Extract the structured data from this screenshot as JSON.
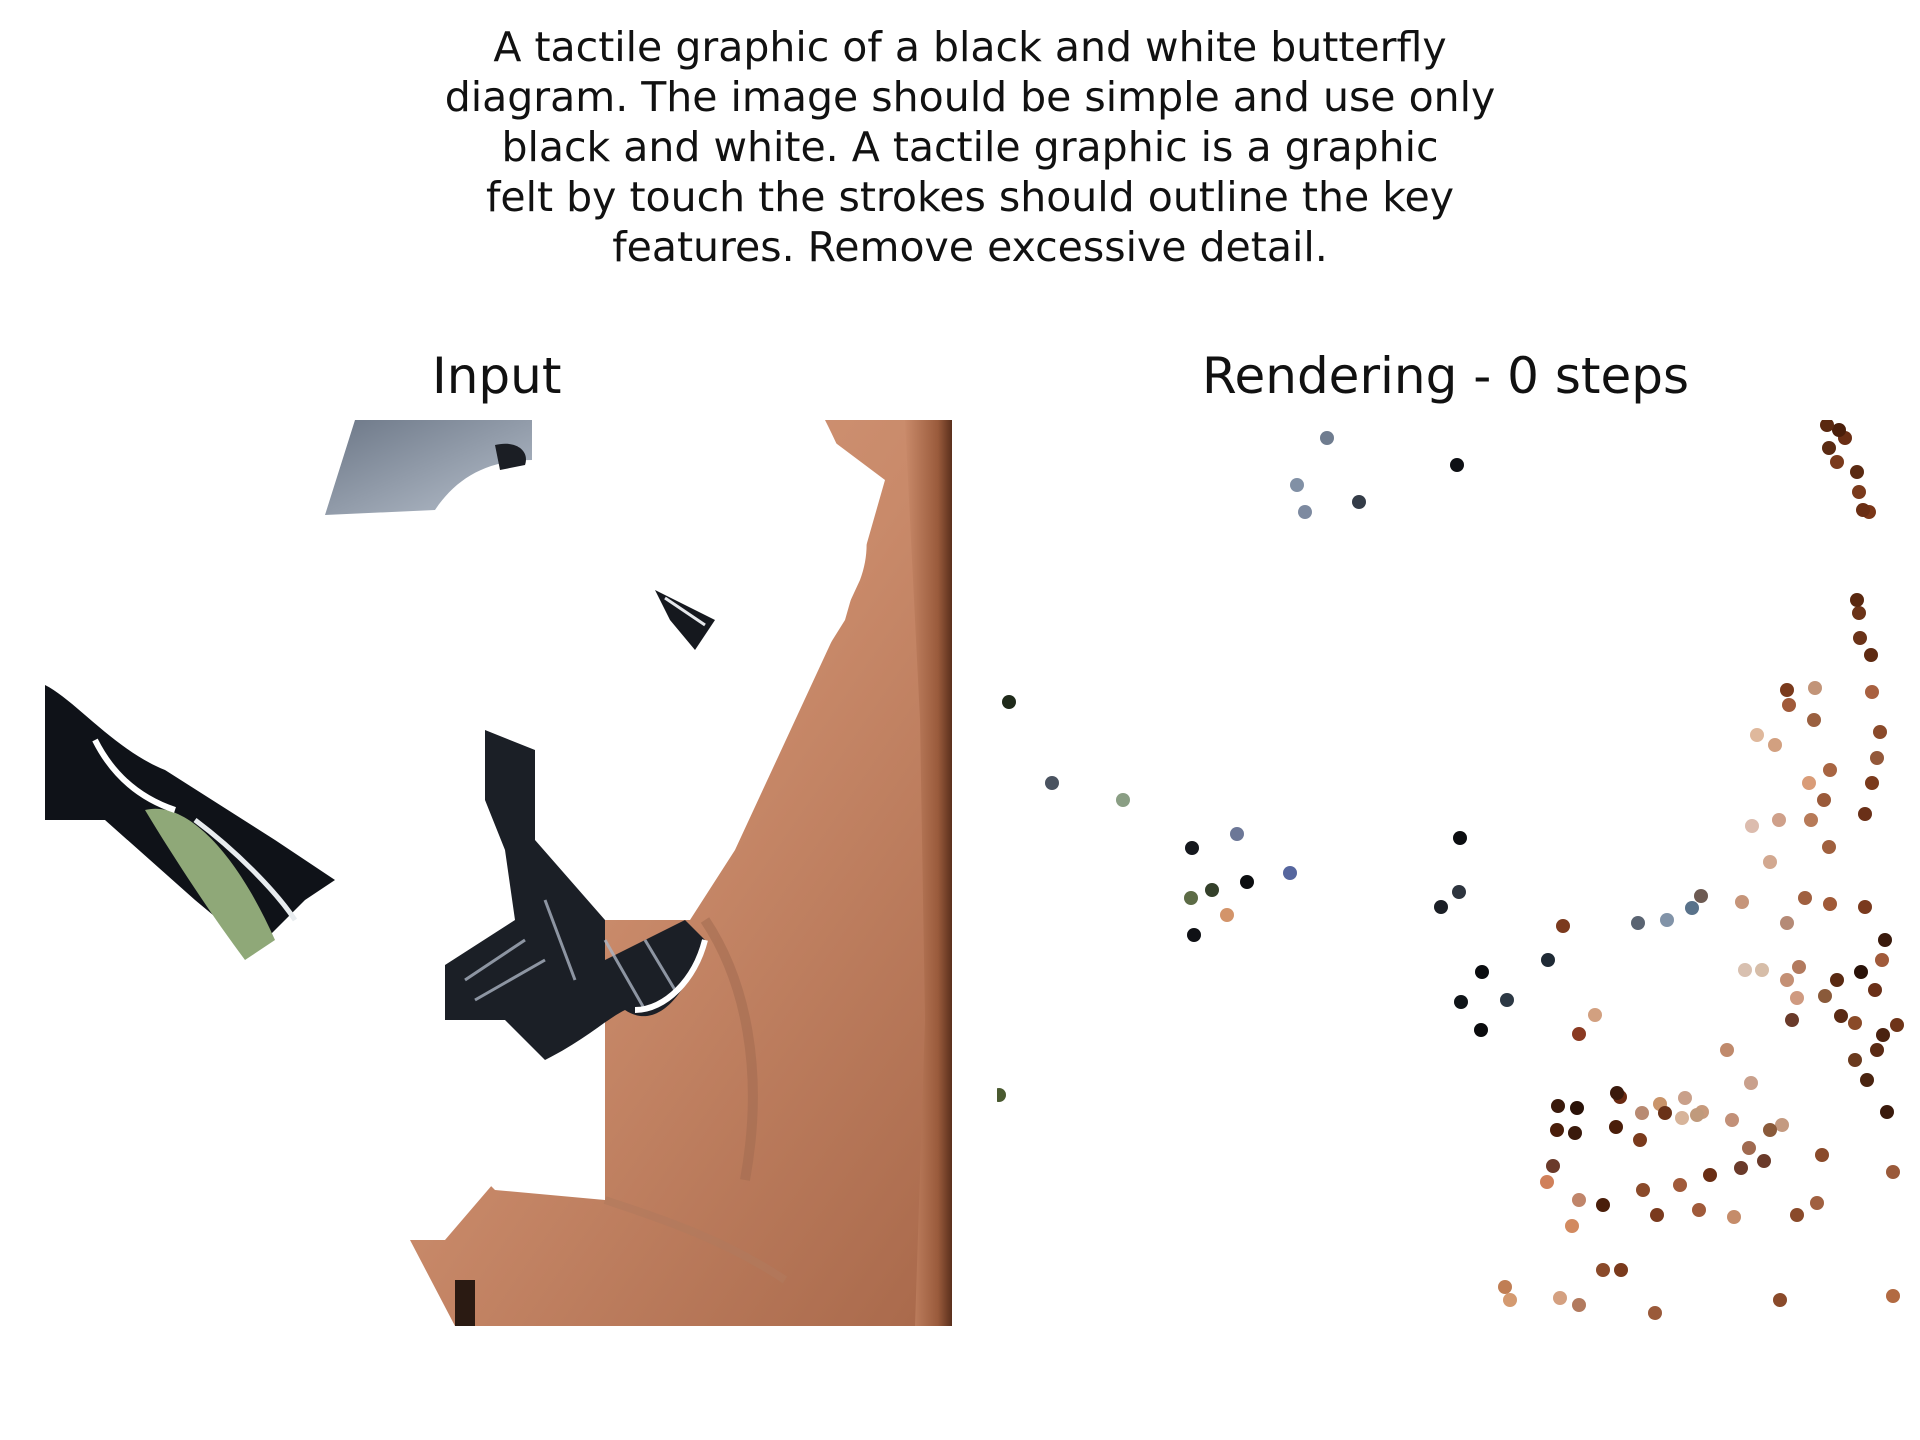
{
  "prompt": {
    "lines": [
      "A tactile graphic of a black and white butterfly",
      "diagram. The image should be simple and use only",
      "black and white. A tactile graphic is a graphic",
      "felt by touch the strokes should outline the key",
      "features. Remove excessive detail."
    ]
  },
  "panels": {
    "input_title": "Input",
    "rendering_title": "Rendering - 0 steps"
  },
  "colors": {
    "skin": "#c98a6a",
    "skin_light": "#e0a98d",
    "skin_dark": "#8a4a2e",
    "wing_black": "#15181e",
    "wing_gray": "#8a95a6",
    "leaf_green": "#8fa878",
    "background": "#ffffff"
  }
}
